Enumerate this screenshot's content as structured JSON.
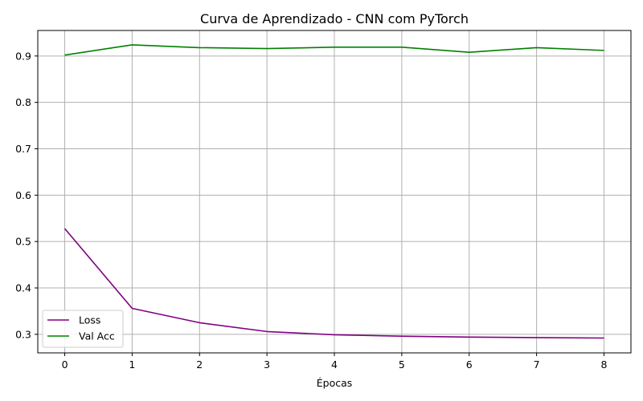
{
  "chart_data": {
    "type": "line",
    "title": "Curva de Aprendizado - CNN com PyTorch",
    "xlabel": "Épocas",
    "ylabel": "",
    "x": [
      0,
      1,
      2,
      3,
      4,
      5,
      6,
      7,
      8
    ],
    "xticks": [
      "0",
      "1",
      "2",
      "3",
      "4",
      "5",
      "6",
      "7",
      "8"
    ],
    "yticks": [
      "0.3",
      "0.4",
      "0.5",
      "0.6",
      "0.7",
      "0.8",
      "0.9"
    ],
    "xlim": [
      -0.4,
      8.4
    ],
    "ylim": [
      0.26,
      0.955
    ],
    "grid": true,
    "legend_position": "bottom-left",
    "series": [
      {
        "name": "Loss",
        "color": "#800080",
        "values": [
          0.528,
          0.356,
          0.325,
          0.306,
          0.299,
          0.296,
          0.294,
          0.293,
          0.292
        ]
      },
      {
        "name": "Val Acc",
        "color": "#008000",
        "values": [
          0.902,
          0.924,
          0.918,
          0.916,
          0.919,
          0.919,
          0.908,
          0.918,
          0.912
        ]
      }
    ]
  }
}
